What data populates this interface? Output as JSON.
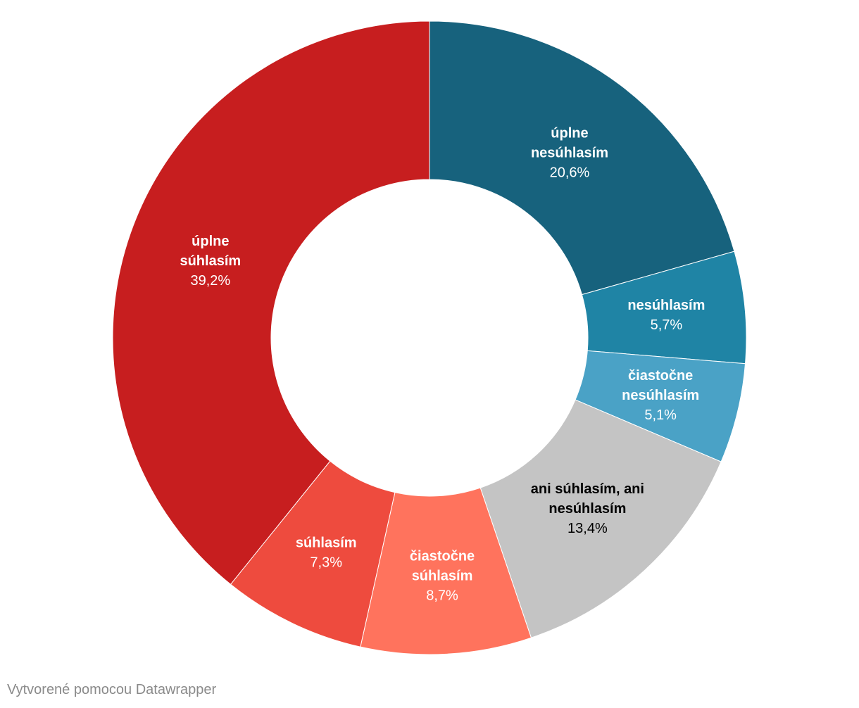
{
  "chart_data": {
    "type": "pie",
    "variant": "donut",
    "title": "",
    "slices": [
      {
        "label": [
          "úplne",
          "nesúhlasím"
        ],
        "value": 20.6,
        "value_label": "20,6%",
        "color": "#17627d",
        "text_color": "#ffffff"
      },
      {
        "label": [
          "nesúhlasím"
        ],
        "value": 5.7,
        "value_label": "5,7%",
        "color": "#1f84a5",
        "text_color": "#ffffff"
      },
      {
        "label": [
          "čiastočne",
          "nesúhlasím"
        ],
        "value": 5.1,
        "value_label": "5,1%",
        "color": "#4aa2c6",
        "text_color": "#ffffff"
      },
      {
        "label": [
          "ani súhlasím, ani",
          "nesúhlasím"
        ],
        "value": 13.4,
        "value_label": "13,4%",
        "color": "#c4c4c4",
        "text_color": "#000000"
      },
      {
        "label": [
          "čiastočne",
          "súhlasím"
        ],
        "value": 8.7,
        "value_label": "8,7%",
        "color": "#ff735d",
        "text_color": "#ffffff"
      },
      {
        "label": [
          "súhlasím"
        ],
        "value": 7.3,
        "value_label": "7,3%",
        "color": "#ee4b3e",
        "text_color": "#ffffff"
      },
      {
        "label": [
          "úplne",
          "súhlasím"
        ],
        "value": 39.2,
        "value_label": "39,2%",
        "color": "#c71e1f",
        "text_color": "#ffffff"
      }
    ]
  },
  "footer": {
    "credit": "Vytvorené pomocou Datawrapper"
  }
}
